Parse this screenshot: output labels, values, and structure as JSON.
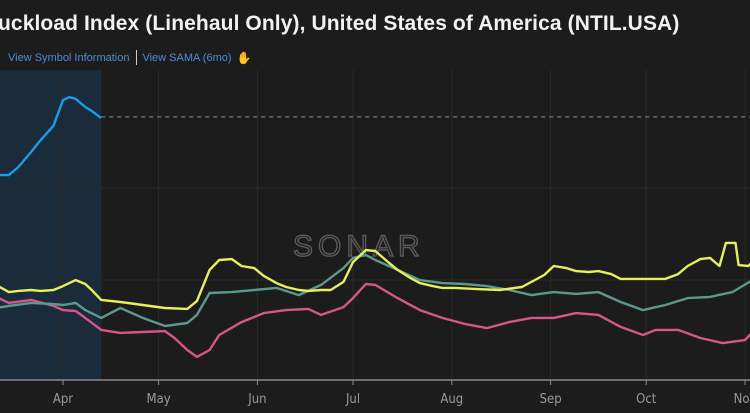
{
  "header": {
    "title": "uckload Index (Linehaul Only), United States of America (NTIL.USA)",
    "link_symbol_info": "View Symbol Information",
    "link_sama": "View SAMA (6mo)",
    "sama_icon": "chart-hand-icon"
  },
  "watermark": "SONAR",
  "colors": {
    "background": "#1c1c1c",
    "blue": "#1e9be8",
    "yellow": "#e6ef5e",
    "teal": "#5a9a8e",
    "pink": "#d6568a",
    "shade": "#1a2b3b",
    "link": "#4a8fd6"
  },
  "chart_data": {
    "type": "line",
    "title": "",
    "xlabel": "",
    "ylabel": "",
    "x_ticks": [
      "Apr",
      "May",
      "Jun",
      "Jul",
      "Aug",
      "Sep",
      "Oct",
      "Nov"
    ],
    "x_range": [
      "Mar 11",
      "Nov 4"
    ],
    "ylim": [
      0,
      100
    ],
    "y_axis_labels_visible": false,
    "grid": true,
    "shaded_range": [
      "Mar 11",
      "Apr 13"
    ],
    "reference_line": {
      "style": "dashed",
      "value": 87.7
    },
    "series": [
      {
        "color": "blue",
        "points": [
          [
            "Mar 11",
            68.3
          ],
          [
            "Mar 15",
            68.3
          ],
          [
            "Mar 18",
            71
          ],
          [
            "Mar 22",
            76
          ],
          [
            "Mar 25",
            80
          ],
          [
            "Mar 29",
            84.7
          ],
          [
            "Apr 1",
            93.3
          ],
          [
            "Apr 3",
            94.3
          ],
          [
            "Apr 5",
            93.7
          ],
          [
            "Apr 8",
            91
          ],
          [
            "Apr 10",
            89.7
          ],
          [
            "Apr 13",
            87.3
          ]
        ]
      },
      {
        "color": "yellow",
        "points": [
          [
            "Mar 11",
            31.7
          ],
          [
            "Mar 15",
            29.3
          ],
          [
            "Mar 18",
            29.7
          ],
          [
            "Mar 22",
            30
          ],
          [
            "Mar 25",
            29.7
          ],
          [
            "Mar 29",
            30
          ],
          [
            "Apr 1",
            31.3
          ],
          [
            "Apr 5",
            33.3
          ],
          [
            "Apr 8",
            32
          ],
          [
            "Apr 10",
            30
          ],
          [
            "Apr 13",
            26.7
          ],
          [
            "Apr 19",
            26
          ],
          [
            "Apr 26",
            25
          ],
          [
            "May 3",
            24
          ],
          [
            "May 10",
            23.7
          ],
          [
            "May 13",
            26.3
          ],
          [
            "May 17",
            36.7
          ],
          [
            "May 20",
            40
          ],
          [
            "May 24",
            40.3
          ],
          [
            "May 27",
            38
          ],
          [
            "May 31",
            37.3
          ],
          [
            "Jun 3",
            34.7
          ],
          [
            "Jun 7",
            32.3
          ],
          [
            "Jun 10",
            31
          ],
          [
            "Jun 14",
            30
          ],
          [
            "Jun 17",
            29.7
          ],
          [
            "Jun 21",
            30
          ],
          [
            "Jun 24",
            30
          ],
          [
            "Jun 28",
            32.7
          ],
          [
            "Jul 1",
            39.3
          ],
          [
            "Jul 5",
            43.3
          ],
          [
            "Jul 8",
            43
          ],
          [
            "Jul 12",
            39.3
          ],
          [
            "Jul 15",
            36.7
          ],
          [
            "Jul 19",
            34
          ],
          [
            "Jul 22",
            32.3
          ],
          [
            "Jul 26",
            31.3
          ],
          [
            "Jul 29",
            30.7
          ],
          [
            "Aug 2",
            30.7
          ],
          [
            "Aug 9",
            30.3
          ],
          [
            "Aug 16",
            30
          ],
          [
            "Aug 23",
            31
          ],
          [
            "Aug 30",
            35
          ],
          [
            "Sep 2",
            38
          ],
          [
            "Sep 6",
            37.3
          ],
          [
            "Sep 9",
            36.3
          ],
          [
            "Sep 13",
            36
          ],
          [
            "Sep 16",
            36.3
          ],
          [
            "Sep 20",
            35.3
          ],
          [
            "Sep 23",
            33.7
          ],
          [
            "Sep 30",
            33.7
          ],
          [
            "Oct 7",
            33.7
          ],
          [
            "Oct 11",
            35.3
          ],
          [
            "Oct 14",
            38
          ],
          [
            "Oct 18",
            40.3
          ],
          [
            "Oct 21",
            40.7
          ],
          [
            "Oct 24",
            38
          ],
          [
            "Oct 26",
            45.7
          ],
          [
            "Oct 29",
            45.7
          ],
          [
            "Oct 30",
            38.3
          ],
          [
            "Nov 2",
            38
          ],
          [
            "Nov 4",
            40
          ]
        ]
      },
      {
        "color": "teal",
        "points": [
          [
            "Mar 11",
            24
          ],
          [
            "Mar 15",
            24.7
          ],
          [
            "Mar 22",
            25.7
          ],
          [
            "Mar 29",
            25.3
          ],
          [
            "Apr 1",
            25
          ],
          [
            "Apr 5",
            25.7
          ],
          [
            "Apr 8",
            23.3
          ],
          [
            "Apr 13",
            20.7
          ],
          [
            "Apr 19",
            24
          ],
          [
            "Apr 26",
            20.7
          ],
          [
            "May 3",
            18
          ],
          [
            "May 10",
            19
          ],
          [
            "May 13",
            21.7
          ],
          [
            "May 17",
            29
          ],
          [
            "May 24",
            29.3
          ],
          [
            "May 31",
            30
          ],
          [
            "Jun 7",
            30.7
          ],
          [
            "Jun 14",
            28.3
          ],
          [
            "Jun 21",
            31.7
          ],
          [
            "Jun 28",
            37.3
          ],
          [
            "Jul 1",
            40.7
          ],
          [
            "Jul 5",
            41.7
          ],
          [
            "Jul 8",
            40
          ],
          [
            "Jul 15",
            36.7
          ],
          [
            "Jul 22",
            33.3
          ],
          [
            "Jul 29",
            32.3
          ],
          [
            "Aug 5",
            32
          ],
          [
            "Aug 12",
            31.3
          ],
          [
            "Aug 19",
            30
          ],
          [
            "Aug 26",
            28.3
          ],
          [
            "Sep 2",
            29.3
          ],
          [
            "Sep 9",
            28.7
          ],
          [
            "Sep 16",
            29.3
          ],
          [
            "Sep 23",
            26
          ],
          [
            "Sep 30",
            23.3
          ],
          [
            "Oct 7",
            25
          ],
          [
            "Oct 14",
            27.3
          ],
          [
            "Oct 21",
            27.7
          ],
          [
            "Oct 28",
            29.3
          ],
          [
            "Nov 4",
            33.7
          ]
        ]
      },
      {
        "color": "pink",
        "points": [
          [
            "Mar 11",
            27.7
          ],
          [
            "Mar 15",
            25.7
          ],
          [
            "Mar 22",
            26.7
          ],
          [
            "Mar 29",
            24.7
          ],
          [
            "Apr 1",
            23.3
          ],
          [
            "Apr 5",
            23
          ],
          [
            "Apr 8",
            20.7
          ],
          [
            "Apr 13",
            16.7
          ],
          [
            "Apr 19",
            15.7
          ],
          [
            "Apr 26",
            16
          ],
          [
            "May 3",
            16.3
          ],
          [
            "May 6",
            14
          ],
          [
            "May 10",
            10
          ],
          [
            "May 13",
            7.7
          ],
          [
            "May 17",
            10
          ],
          [
            "May 20",
            15
          ],
          [
            "May 27",
            19.3
          ],
          [
            "Jun 3",
            22.3
          ],
          [
            "Jun 10",
            23.3
          ],
          [
            "Jun 17",
            23.7
          ],
          [
            "Jun 21",
            21.7
          ],
          [
            "Jun 28",
            24.3
          ],
          [
            "Jul 1",
            27.3
          ],
          [
            "Jul 5",
            32
          ],
          [
            "Jul 8",
            31.7
          ],
          [
            "Jul 15",
            27.3
          ],
          [
            "Jul 22",
            23.3
          ],
          [
            "Jul 29",
            20.7
          ],
          [
            "Aug 5",
            18.7
          ],
          [
            "Aug 12",
            17.3
          ],
          [
            "Aug 19",
            19.3
          ],
          [
            "Aug 26",
            20.7
          ],
          [
            "Sep 2",
            20.7
          ],
          [
            "Sep 9",
            22.3
          ],
          [
            "Sep 16",
            21.7
          ],
          [
            "Sep 23",
            17.7
          ],
          [
            "Sep 30",
            15
          ],
          [
            "Oct 4",
            16.7
          ],
          [
            "Oct 11",
            16.7
          ],
          [
            "Oct 18",
            14
          ],
          [
            "Oct 25",
            12.3
          ],
          [
            "Nov 1",
            13.3
          ],
          [
            "Nov 4",
            16.7
          ]
        ]
      }
    ]
  }
}
